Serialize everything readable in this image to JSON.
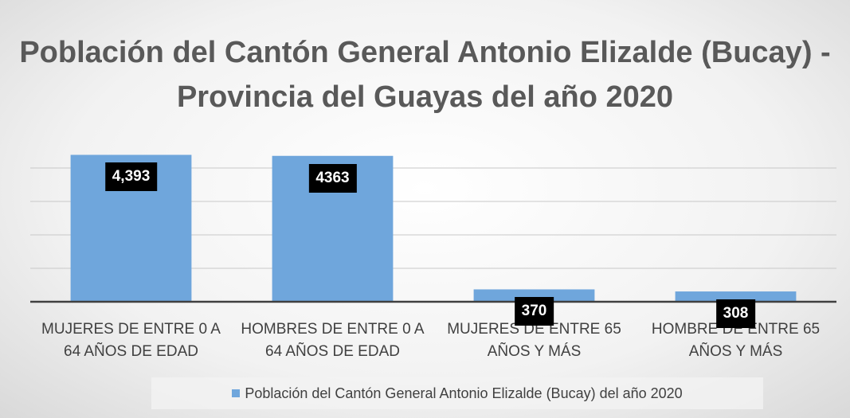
{
  "chart_data": {
    "type": "bar",
    "title": "Población del Cantón General Antonio Elizalde (Bucay) - Provincia del Guayas del año 2020",
    "categories": [
      "MUJERES DE ENTRE 0 A 64 AÑOS DE EDAD",
      "HOMBRES DE ENTRE 0 A 64 AÑOS DE EDAD",
      "MUJERES DE ENTRE 65 AÑOS Y MÁS",
      "HOMBRE DE ENTRE 65 AÑOS Y MÁS"
    ],
    "series": [
      {
        "name": "Población del Cantón General Antonio Elizalde (Bucay) del año 2020",
        "color": "#6fa6dc",
        "values": [
          4393,
          4363,
          370,
          308
        ],
        "value_labels": [
          "4,393",
          "4363",
          "370",
          "308"
        ]
      }
    ],
    "ylim": [
      0,
      5000
    ],
    "yticks": [
      0,
      1000,
      2000,
      3000,
      4000
    ],
    "grid": true,
    "legend": "bottom"
  }
}
